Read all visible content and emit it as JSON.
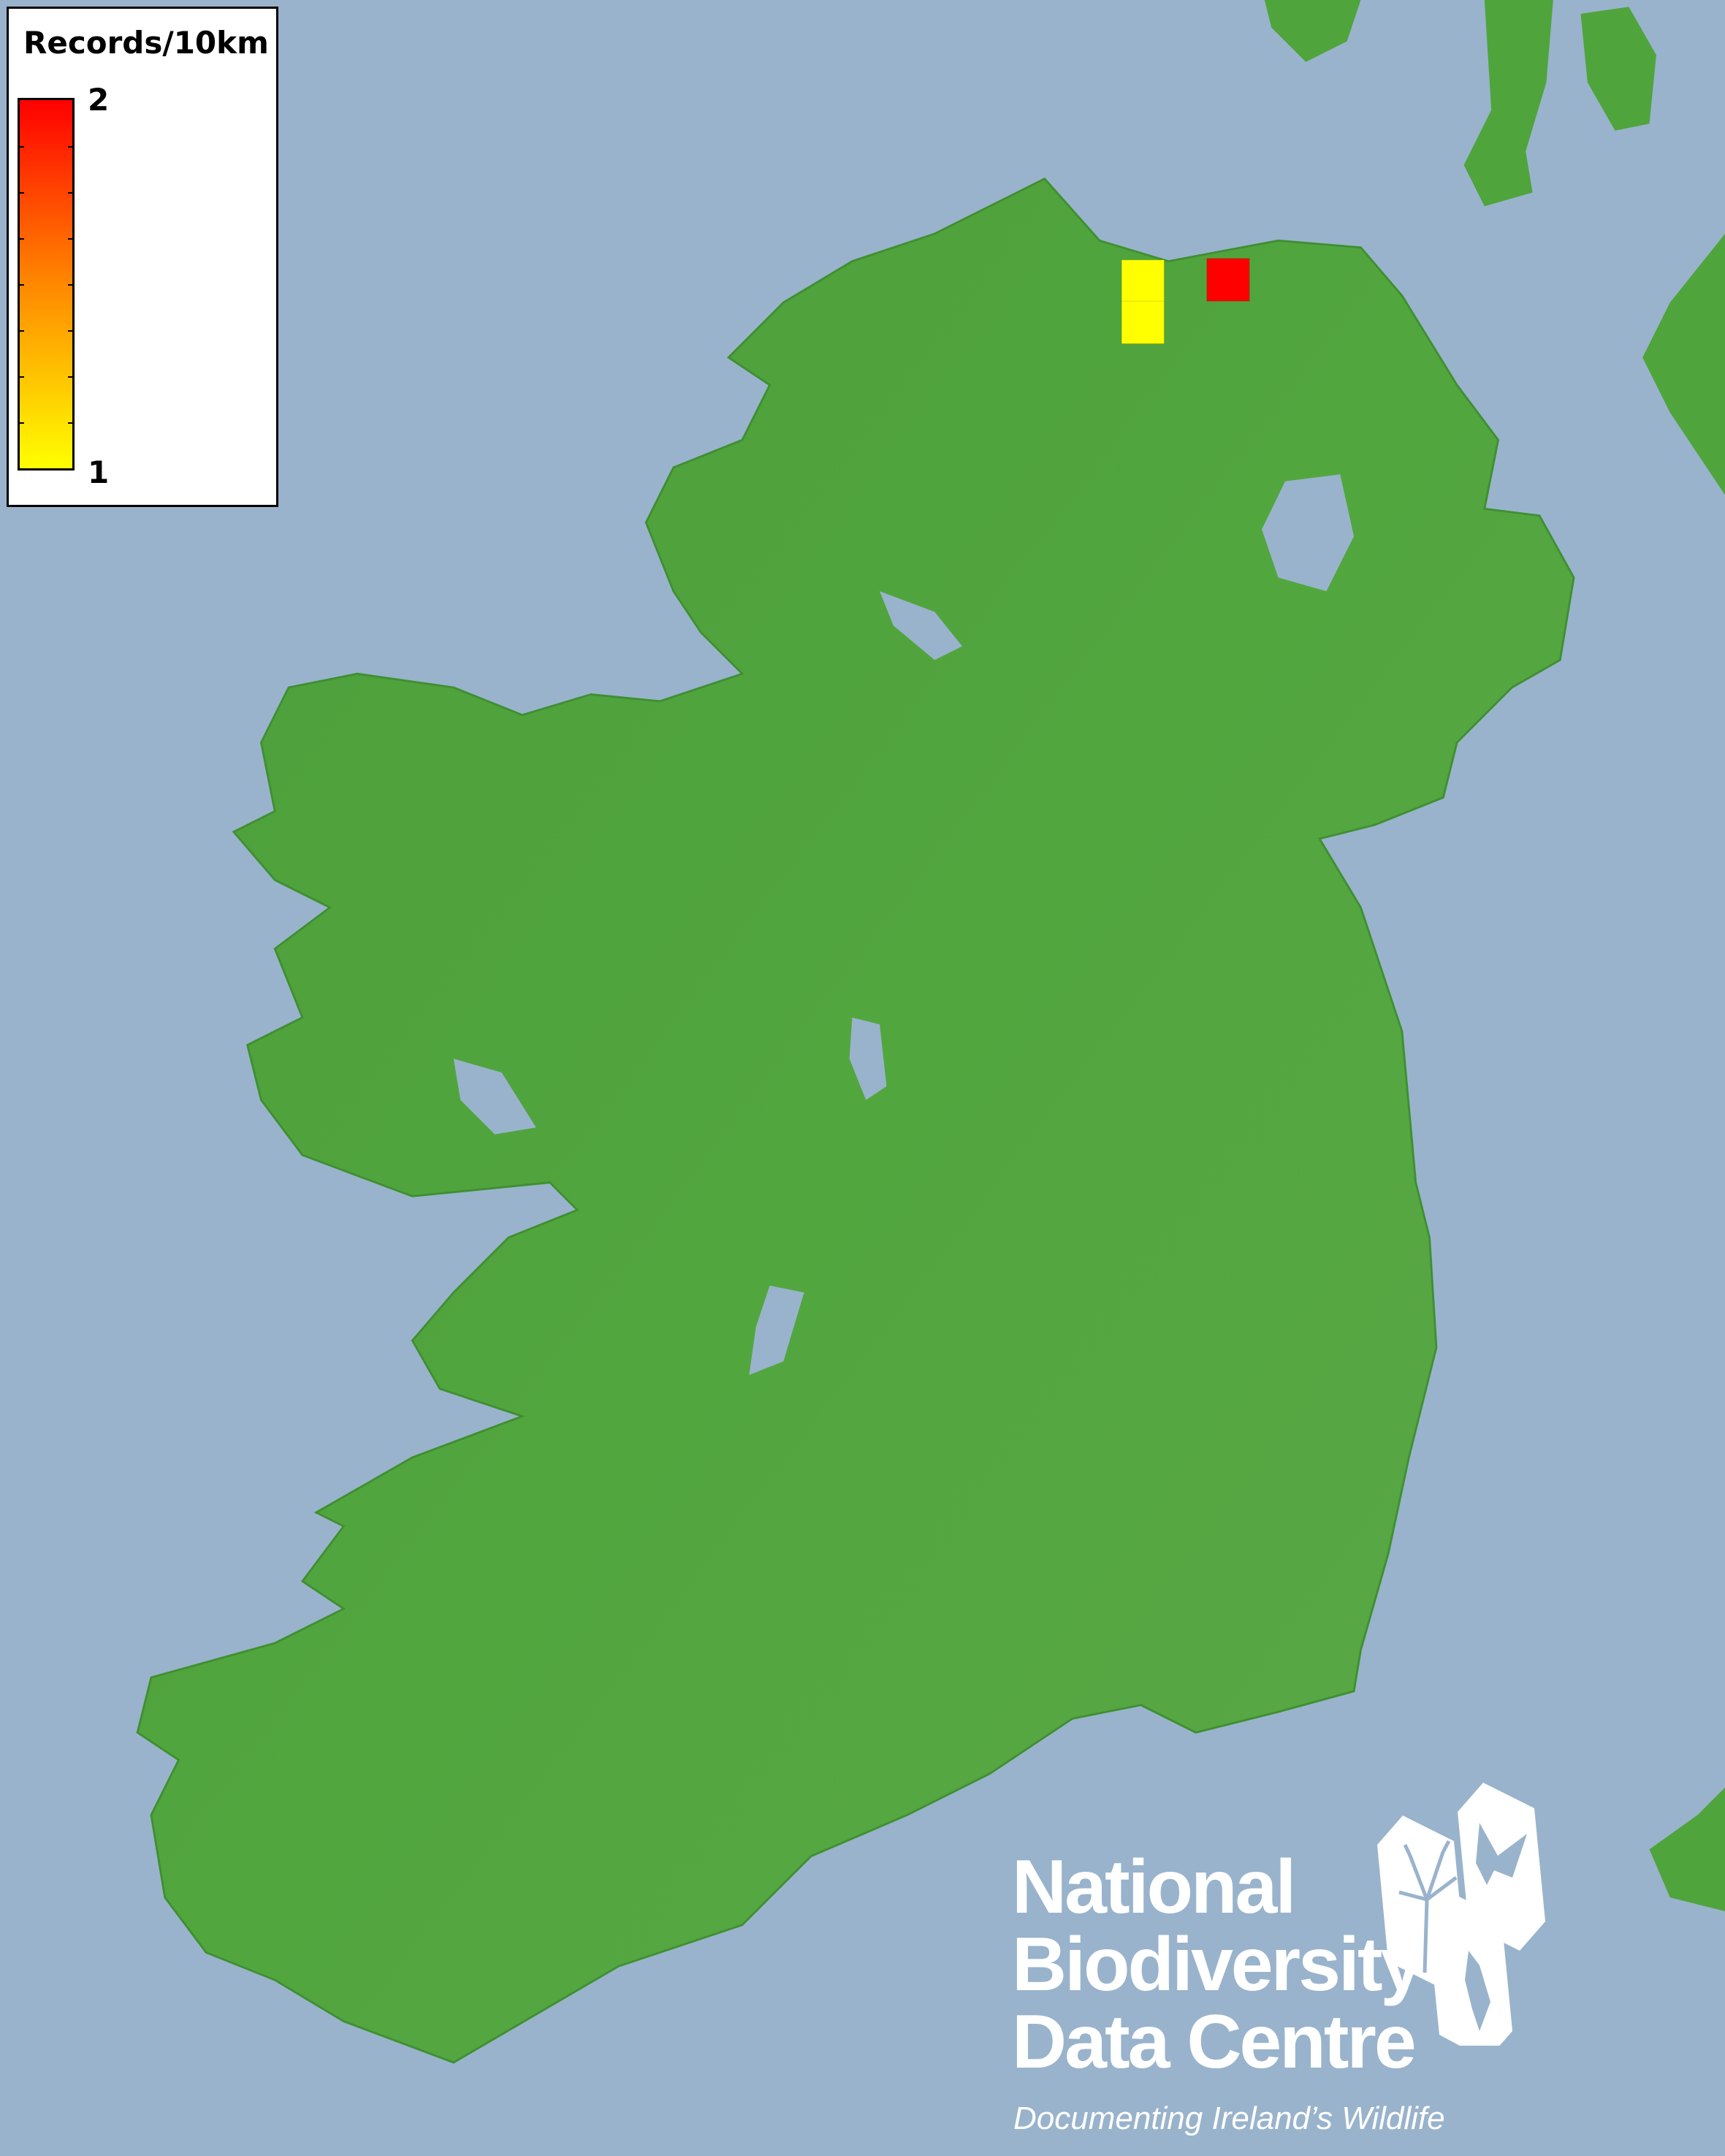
{
  "legend": {
    "title": "Records/10km",
    "max_label": "2",
    "min_label": "1",
    "color_max": "#ff0000",
    "color_mid": "#ff8800",
    "color_min": "#ffff00"
  },
  "records": [
    {
      "count": 1,
      "color": "#ffff00"
    },
    {
      "count": 1,
      "color": "#ffff00"
    },
    {
      "count": 2,
      "color": "#ff0000"
    }
  ],
  "colors": {
    "sea": "#99b3cc",
    "land": "#4fa43c"
  },
  "logo": {
    "line1": "National",
    "line2": "Biodiversity",
    "line3": "Data Centre",
    "tagline": "Documenting Ireland’s Wildlife",
    "icons": [
      "tree-icon",
      "butterfly-icon",
      "seahorse-icon"
    ]
  }
}
